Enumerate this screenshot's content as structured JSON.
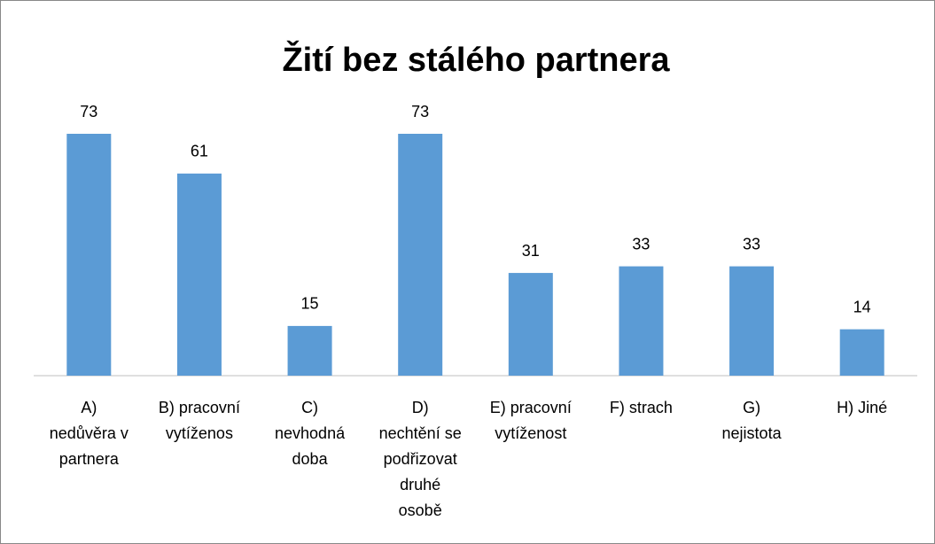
{
  "chart_data": {
    "type": "bar",
    "title": "Žití bez stálého partnera",
    "categories": [
      [
        "A)",
        "nedůvěra v",
        "partnera"
      ],
      [
        "B) pracovní",
        "vytížеnos"
      ],
      [
        "C)",
        "nevhodná",
        "doba"
      ],
      [
        "D)",
        "nechtění se",
        "podřizovat",
        "druhé",
        "osobě"
      ],
      [
        "E) pracovní",
        "vytíženost"
      ],
      [
        "F) strach"
      ],
      [
        "G)",
        "nejistota"
      ],
      [
        "H) Jiné"
      ]
    ],
    "values": [
      73,
      61,
      15,
      73,
      31,
      33,
      33,
      14
    ],
    "color": "#5b9bd5"
  }
}
